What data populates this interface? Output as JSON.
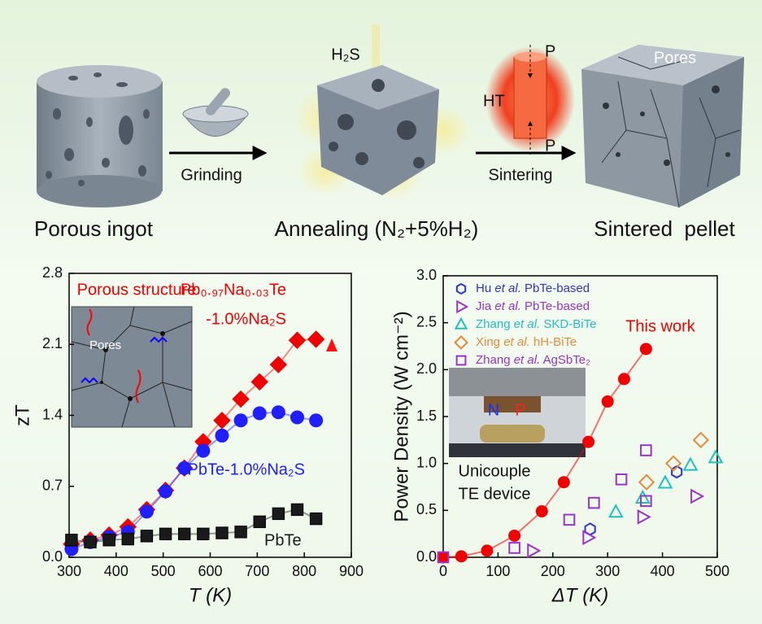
{
  "schematic": {
    "gas": "H₂S",
    "pressure_top": "P",
    "pressure_bottom": "P",
    "heating": "HT",
    "pores": "Pores",
    "step_1": "Grinding",
    "step_2": "Sintering",
    "stage_1": "Porous ingot",
    "stage_2": "Annealing (N₂+5%H₂)",
    "stage_3": "Sintered  pellet"
  },
  "chart_data": [
    {
      "type": "line",
      "xlabel": "T (K)",
      "ylabel": "zT",
      "x": [
        305,
        345,
        385,
        425,
        465,
        505,
        545,
        585,
        625,
        665,
        705,
        745,
        785,
        825
      ],
      "series": [
        {
          "name": "Pb₀.₉₇Na₀.₀₃Te",
          "color": "#f00000",
          "marker": "diamond",
          "filled": true,
          "values": [
            0.13,
            0.17,
            0.22,
            0.3,
            0.47,
            0.66,
            0.88,
            1.14,
            1.35,
            1.56,
            1.73,
            1.9,
            2.14,
            2.15
          ]
        },
        {
          "name": "PbTe-1.0%Na₂S",
          "color": "#1f1fff",
          "marker": "circle",
          "filled": true,
          "values": [
            0.08,
            0.15,
            0.2,
            0.25,
            0.45,
            0.65,
            0.88,
            1.05,
            1.2,
            1.35,
            1.42,
            1.43,
            1.38,
            1.35
          ]
        },
        {
          "name": "PbTe",
          "color": "#1a1a1a",
          "marker": "square",
          "filled": true,
          "values": [
            0.17,
            0.15,
            0.17,
            0.18,
            0.21,
            0.23,
            0.23,
            0.23,
            0.24,
            0.25,
            0.35,
            0.43,
            0.47,
            0.38
          ]
        }
      ],
      "annotations": [
        "Porous structure",
        "-1.0%Na₂S",
        "Pores"
      ],
      "xlim": [
        300,
        900
      ],
      "xticks": [
        300,
        400,
        500,
        600,
        700,
        800,
        900
      ],
      "ylim": [
        0,
        2.8
      ],
      "yticks": [
        {
          "value": 0,
          "label": "0.0"
        },
        0.7,
        1.4,
        2.1,
        2.8
      ]
    },
    {
      "type": "scatter",
      "xlabel": "ΔT (K)",
      "ylabel": "Power Density (W cm⁻²)",
      "series": [
        {
          "color": "#f00000",
          "marker": "circle",
          "filled": true,
          "line": true,
          "x": [
            0,
            33,
            80,
            130,
            180,
            220,
            265,
            300,
            330,
            370
          ],
          "values": [
            0,
            0.01,
            0.07,
            0.23,
            0.49,
            0.8,
            1.23,
            1.66,
            1.9,
            2.22
          ]
        },
        {
          "name": "Hu et al. PbTe-based",
          "color": "#3333cc",
          "marker": "hexagon",
          "filled": false,
          "x": [
            268,
            426
          ],
          "values": [
            0.3,
            0.91
          ]
        },
        {
          "name": "Jia et al. PbTe-based",
          "color": "#9933cc",
          "marker": "triangle-right",
          "filled": false,
          "x": [
            163,
            264,
            364,
            461
          ],
          "values": [
            0.07,
            0.21,
            0.43,
            0.65
          ]
        },
        {
          "name": "Zhang et al. SKD-BiTe",
          "color": "#20c0c0",
          "marker": "triangle-up",
          "filled": false,
          "x": [
            315,
            364,
            405,
            451,
            497
          ],
          "values": [
            0.48,
            0.63,
            0.79,
            0.98,
            1.06
          ]
        },
        {
          "name": "Xing et al. hH-BiTe",
          "color": "#e68a3c",
          "marker": "diamond",
          "filled": false,
          "x": [
            371,
            420,
            470
          ],
          "values": [
            0.8,
            1.0,
            1.25
          ]
        },
        {
          "name": "Zhang et al. AgSbTe₂",
          "color": "#9933cc",
          "marker": "square",
          "filled": false,
          "x": [
            0,
            130,
            230,
            275,
            325,
            370,
            370
          ],
          "values": [
            0,
            0.1,
            0.4,
            0.58,
            0.83,
            1.14,
            0.6
          ]
        }
      ],
      "annotations": [
        "This work",
        "N",
        "P",
        "Unicouple",
        "TE device"
      ],
      "legend": "upper left",
      "xlim": [
        0,
        500
      ],
      "xticks": [
        0,
        100,
        200,
        300,
        400,
        500
      ],
      "ylim": [
        0,
        3.0
      ],
      "yticks": [
        {
          "value": 0,
          "label": "0.0"
        },
        0.5,
        {
          "value": 1.0,
          "label": "1.0"
        },
        1.5,
        {
          "value": 2.0,
          "label": "2.0"
        },
        2.5,
        {
          "value": 3.0,
          "label": "3.0"
        }
      ]
    }
  ]
}
